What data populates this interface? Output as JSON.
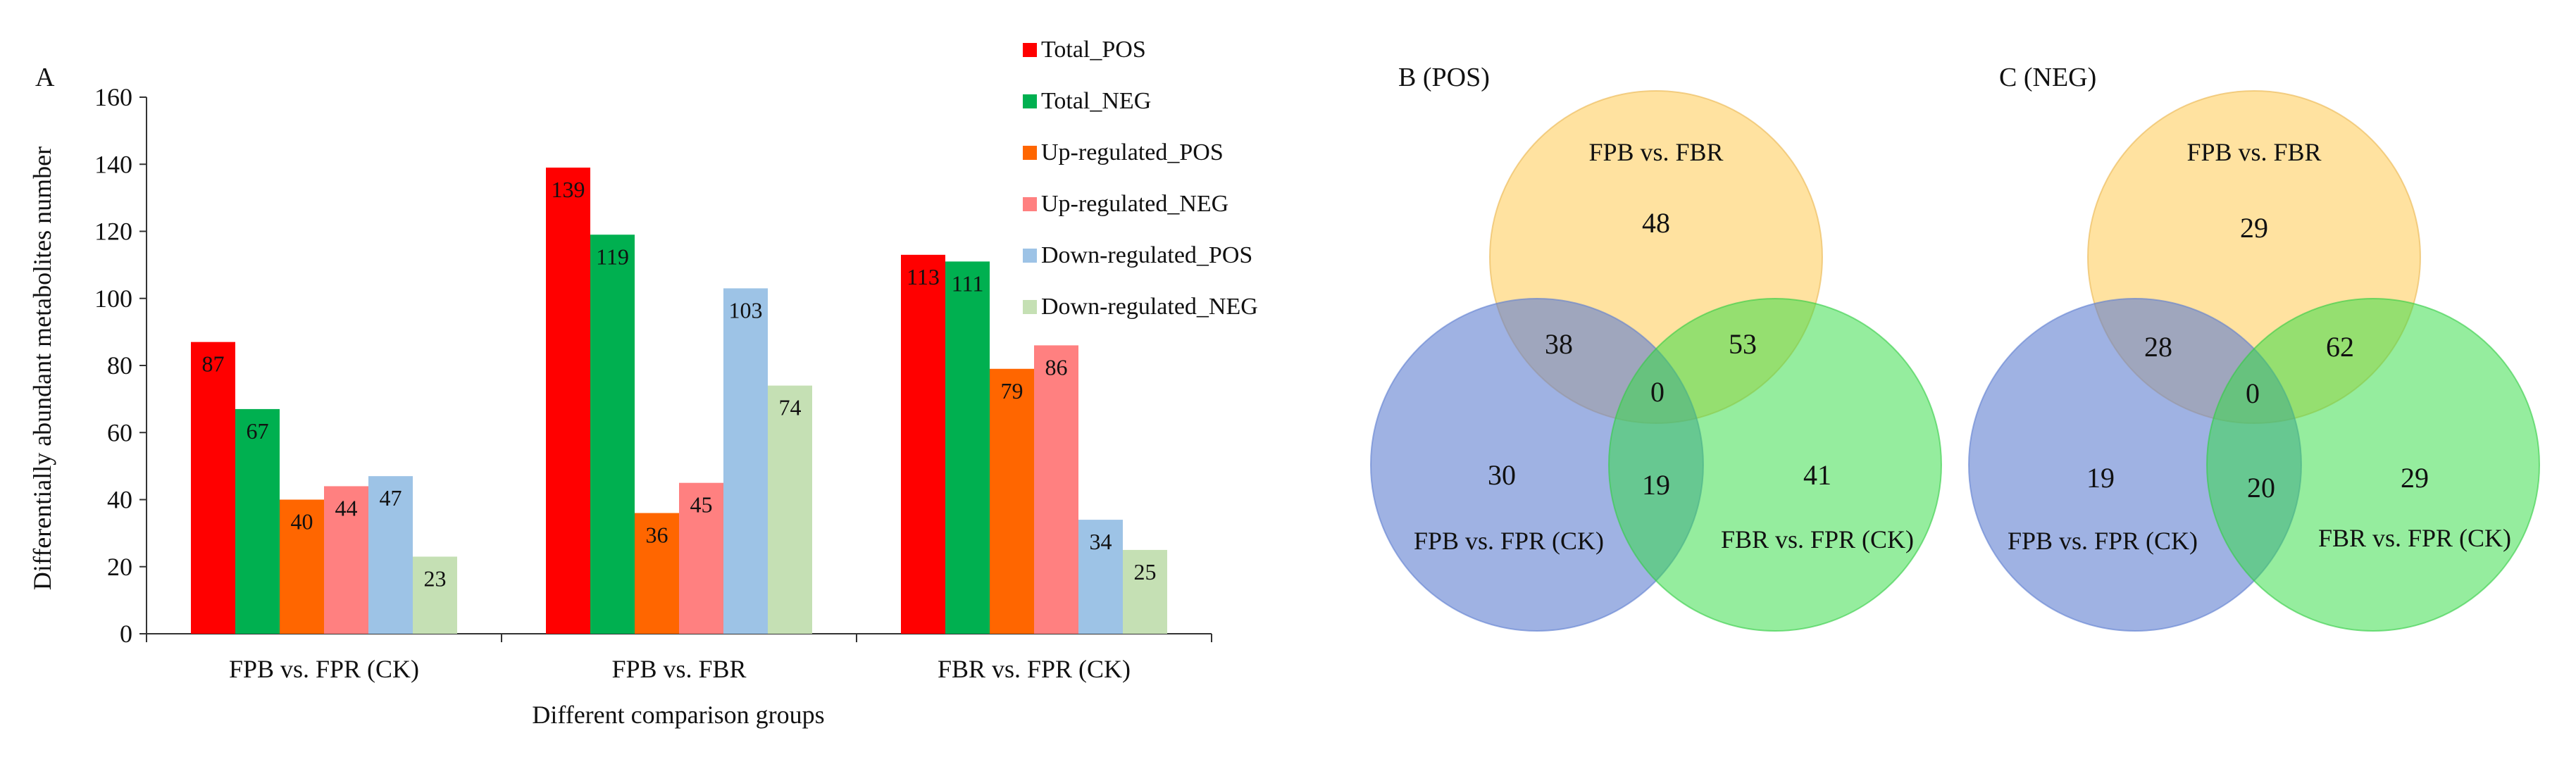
{
  "chart_data": [
    {
      "panel": "A",
      "type": "bar",
      "title": "",
      "xlabel": "Different comparison groups",
      "ylabel": "Differentially abundant metabolites number",
      "ylim": [
        0,
        160
      ],
      "yticks": [
        0,
        20,
        40,
        60,
        80,
        100,
        120,
        140,
        160
      ],
      "grid": false,
      "legend_position": "top-right",
      "categories": [
        "FPB vs. FPR (CK)",
        "FPB vs. FBR",
        "FBR vs. FPR (CK)"
      ],
      "series": [
        {
          "name": "Total_POS",
          "color": "#ff0000",
          "values": [
            87,
            139,
            113
          ]
        },
        {
          "name": "Total_NEG",
          "color": "#00b050",
          "values": [
            67,
            119,
            111
          ]
        },
        {
          "name": "Up-regulated_POS",
          "color": "#ff6600",
          "values": [
            40,
            36,
            79
          ]
        },
        {
          "name": "Up-regulated_NEG",
          "color": "#ff8080",
          "values": [
            44,
            45,
            86
          ]
        },
        {
          "name": "Down-regulated_POS",
          "color": "#9dc3e6",
          "values": [
            47,
            103,
            34
          ]
        },
        {
          "name": "Down-regulated_NEG",
          "color": "#c5e0b4",
          "values": [
            23,
            74,
            25
          ]
        }
      ]
    },
    {
      "panel": "B (POS)",
      "type": "venn",
      "sets": [
        {
          "name": "FPB vs. FBR",
          "color": "#ffd166"
        },
        {
          "name": "FPB vs. FPR (CK)",
          "color": "#7f9cdc"
        },
        {
          "name": "FBR vs. FPR (CK)",
          "color": "#66e86e"
        }
      ],
      "regions": {
        "top_only": 48,
        "left_only": 30,
        "right_only": 41,
        "top_left": 38,
        "top_right": 53,
        "left_right": 19,
        "all": 0
      }
    },
    {
      "panel": "C (NEG)",
      "type": "venn",
      "sets": [
        {
          "name": "FPB vs. FBR",
          "color": "#ffd166"
        },
        {
          "name": "FPB vs. FPR (CK)",
          "color": "#7f9cdc"
        },
        {
          "name": "FBR vs. FPR (CK)",
          "color": "#66e86e"
        }
      ],
      "regions": {
        "top_only": 29,
        "left_only": 19,
        "right_only": 29,
        "top_left": 28,
        "top_right": 62,
        "left_right": 20,
        "all": 0
      }
    }
  ]
}
